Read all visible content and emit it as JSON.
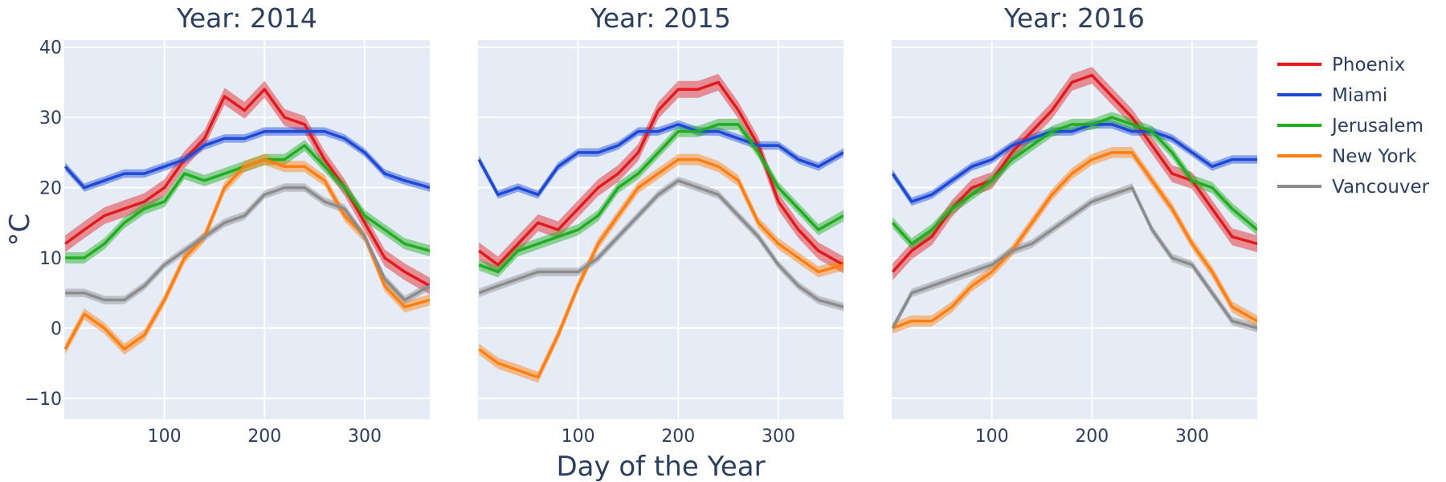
{
  "chart_data": {
    "type": "line",
    "xlabel": "Day of the Year",
    "ylabel": "°C",
    "xlim": [
      0,
      365
    ],
    "ylim": [
      -13,
      41
    ],
    "x_ticks": [
      100,
      200,
      300
    ],
    "y_ticks": [
      -10,
      0,
      10,
      20,
      30,
      40
    ],
    "y_tick_labels": [
      "−10",
      "0",
      "10",
      "20",
      "30",
      "40"
    ],
    "grid": true,
    "legend_position": "right",
    "x": [
      1,
      20,
      40,
      60,
      80,
      100,
      120,
      140,
      160,
      180,
      200,
      220,
      240,
      260,
      280,
      300,
      320,
      340,
      365
    ],
    "series_styles": [
      {
        "name": "Phoenix",
        "color": "#e31a1c"
      },
      {
        "name": "Miami",
        "color": "#1c49d6"
      },
      {
        "name": "Jerusalem",
        "color": "#1fae1f"
      },
      {
        "name": "New York",
        "color": "#ff7f0e"
      },
      {
        "name": "Vancouver",
        "color": "#8c8c8c"
      }
    ],
    "panels": [
      {
        "title": "Year: 2014",
        "series": [
          {
            "name": "Phoenix",
            "values": [
              12,
              14,
              16,
              17,
              18,
              20,
              24,
              27,
              33,
              31,
              34,
              30,
              29,
              24,
              20,
              15,
              10,
              8,
              6
            ],
            "band": 1.2
          },
          {
            "name": "Miami",
            "values": [
              23,
              20,
              21,
              22,
              22,
              23,
              24,
              26,
              27,
              27,
              28,
              28,
              28,
              28,
              27,
              25,
              22,
              21,
              20
            ],
            "band": 0.6
          },
          {
            "name": "Jerusalem",
            "values": [
              10,
              10,
              12,
              15,
              17,
              18,
              22,
              21,
              22,
              23,
              24,
              24,
              26,
              23,
              20,
              16,
              14,
              12,
              11
            ],
            "band": 0.8
          },
          {
            "name": "New York",
            "values": [
              -3,
              2,
              0,
              -3,
              -1,
              4,
              10,
              13,
              20,
              23,
              24,
              23,
              23,
              21,
              16,
              13,
              6,
              3,
              4
            ],
            "band": 0.8
          },
          {
            "name": "Vancouver",
            "values": [
              5,
              5,
              4,
              4,
              6,
              9,
              11,
              13,
              15,
              16,
              19,
              20,
              20,
              18,
              17,
              13,
              7,
              4,
              6
            ],
            "band": 0.6
          }
        ]
      },
      {
        "title": "Year: 2015",
        "series": [
          {
            "name": "Phoenix",
            "values": [
              11,
              9,
              12,
              15,
              14,
              17,
              20,
              22,
              25,
              31,
              34,
              34,
              35,
              31,
              26,
              18,
              14,
              11,
              9
            ],
            "band": 1.2
          },
          {
            "name": "Miami",
            "values": [
              24,
              19,
              20,
              19,
              23,
              25,
              25,
              26,
              28,
              28,
              29,
              28,
              28,
              27,
              26,
              26,
              24,
              23,
              25
            ],
            "band": 0.6
          },
          {
            "name": "Jerusalem",
            "values": [
              9,
              8,
              11,
              12,
              13,
              14,
              16,
              20,
              22,
              25,
              28,
              28,
              29,
              29,
              25,
              20,
              17,
              14,
              16
            ],
            "band": 0.8
          },
          {
            "name": "New York",
            "values": [
              -3,
              -5,
              -6,
              -7,
              -1,
              6,
              12,
              16,
              20,
              22,
              24,
              24,
              23,
              21,
              15,
              12,
              10,
              8,
              9
            ],
            "band": 0.8
          },
          {
            "name": "Vancouver",
            "values": [
              5,
              6,
              7,
              8,
              8,
              8,
              10,
              13,
              16,
              19,
              21,
              20,
              19,
              16,
              13,
              9,
              6,
              4,
              3
            ],
            "band": 0.6
          }
        ]
      },
      {
        "title": "Year: 2016",
        "series": [
          {
            "name": "Phoenix",
            "values": [
              8,
              11,
              13,
              17,
              20,
              21,
              25,
              28,
              31,
              35,
              36,
              33,
              30,
              26,
              22,
              21,
              17,
              13,
              12
            ],
            "band": 1.2
          },
          {
            "name": "Miami",
            "values": [
              22,
              18,
              19,
              21,
              23,
              24,
              26,
              27,
              28,
              28,
              29,
              29,
              28,
              28,
              27,
              25,
              23,
              24,
              24
            ],
            "band": 0.6
          },
          {
            "name": "Jerusalem",
            "values": [
              15,
              12,
              14,
              17,
              19,
              21,
              24,
              26,
              28,
              29,
              29,
              30,
              29,
              28,
              25,
              21,
              20,
              17,
              14
            ],
            "band": 0.8
          },
          {
            "name": "New York",
            "values": [
              0,
              1,
              1,
              3,
              6,
              8,
              11,
              15,
              19,
              22,
              24,
              25,
              25,
              21,
              17,
              12,
              8,
              3,
              1
            ],
            "band": 0.8
          },
          {
            "name": "Vancouver",
            "values": [
              0,
              5,
              6,
              7,
              8,
              9,
              11,
              12,
              14,
              16,
              18,
              19,
              20,
              14,
              10,
              9,
              5,
              1,
              0
            ],
            "band": 0.6
          }
        ]
      }
    ]
  }
}
